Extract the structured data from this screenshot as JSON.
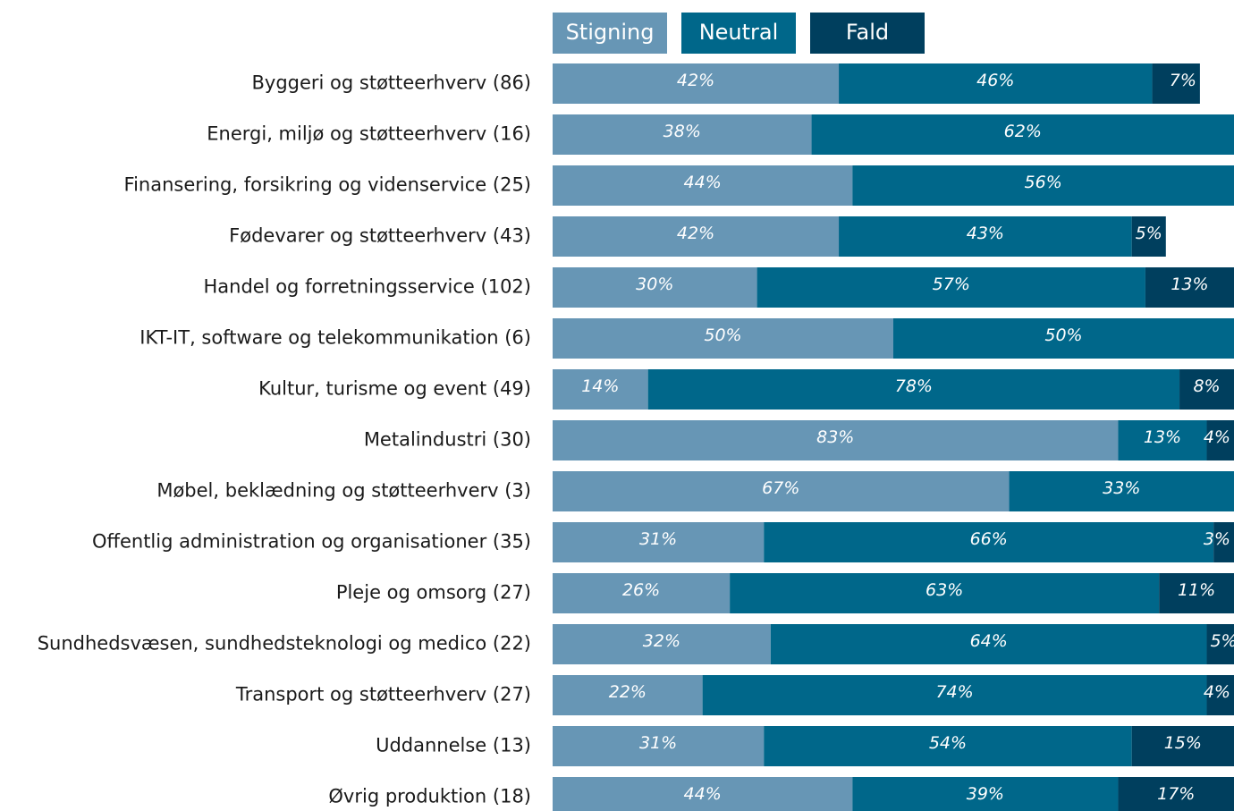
{
  "chart_data": {
    "type": "stacked-bar",
    "orientation": "horizontal",
    "categories": [
      "Byggeri og støtteerhverv (86)",
      "Energi, miljø og støtteerhverv (16)",
      "Finansering, forsikring og videnservice (25)",
      "Fødevarer og støtteerhverv (43)",
      "Handel og forretningsservice (102)",
      "IKT-IT, software og telekommunikation (6)",
      "Kultur, turisme og event (49)",
      "Metalindustri (30)",
      "Møbel, beklædning og støtteerhverv (3)",
      "Offentlig administration og organisationer (35)",
      "Pleje og omsorg (27)",
      "Sundhedsvæsen, sundhedsteknologi og medico (22)",
      "Transport og støtteerhverv (27)",
      "Uddannelse (13)",
      "Øvrig produktion (18)"
    ],
    "series": [
      {
        "name": "Stigning",
        "color": "#6796b5",
        "values": [
          42,
          38,
          44,
          42,
          30,
          50,
          14,
          83,
          67,
          31,
          26,
          32,
          22,
          31,
          44
        ],
        "value_labels": [
          "42%",
          "38%",
          "44%",
          "42%",
          "30%",
          "50%",
          "14%",
          "83%",
          "67%",
          "31%",
          "26%",
          "32%",
          "22%",
          "31%",
          "44%"
        ]
      },
      {
        "name": "Neutral",
        "color": "#00678a",
        "values": [
          46,
          62,
          56,
          43,
          57,
          50,
          78,
          13,
          33,
          66,
          63,
          64,
          74,
          54,
          39
        ],
        "value_labels": [
          "46%",
          "62%",
          "56%",
          "43%",
          "57%",
          "50%",
          "78%",
          "13%",
          "33%",
          "66%",
          "63%",
          "64%",
          "74%",
          "54%",
          "39%"
        ]
      },
      {
        "name": "Fald",
        "color": "#003f5e",
        "values": [
          7,
          null,
          null,
          5,
          13,
          null,
          8,
          4,
          null,
          3,
          11,
          5,
          4,
          15,
          17
        ],
        "value_labels": [
          "7%",
          null,
          null,
          "5%",
          "13%",
          null,
          "8%",
          "4%",
          null,
          "3%",
          "11%",
          "5%",
          "4%",
          "15%",
          "17%"
        ]
      }
    ],
    "xlim": [
      0,
      100
    ]
  }
}
